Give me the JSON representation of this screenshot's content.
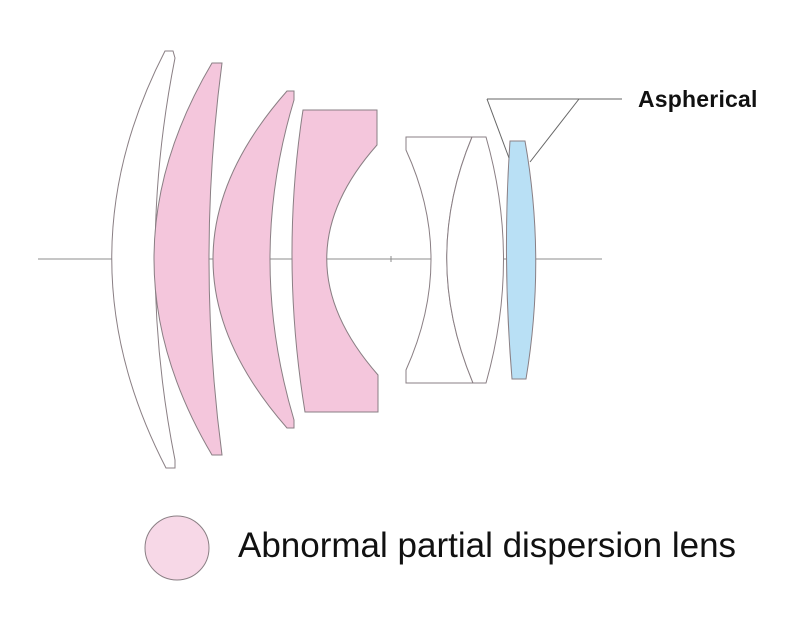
{
  "annotations": {
    "aspherical_label": "Aspherical"
  },
  "legend": {
    "label": "Abnormal partial dispersion lens",
    "swatch_color": "#f7d8e7"
  },
  "colors": {
    "abnormal_dispersion_fill": "#f4c6dc",
    "aspherical_fill": "#b9e0f5",
    "standard_fill": "#ffffff",
    "outline": "#8a7f84",
    "axis": "#8c8c8c"
  },
  "elements": [
    {
      "type": "standard"
    },
    {
      "type": "abnormal-partial-dispersion"
    },
    {
      "type": "abnormal-partial-dispersion"
    },
    {
      "type": "abnormal-partial-dispersion"
    },
    {
      "type": "standard-cemented-doublet"
    },
    {
      "type": "aspherical"
    }
  ]
}
